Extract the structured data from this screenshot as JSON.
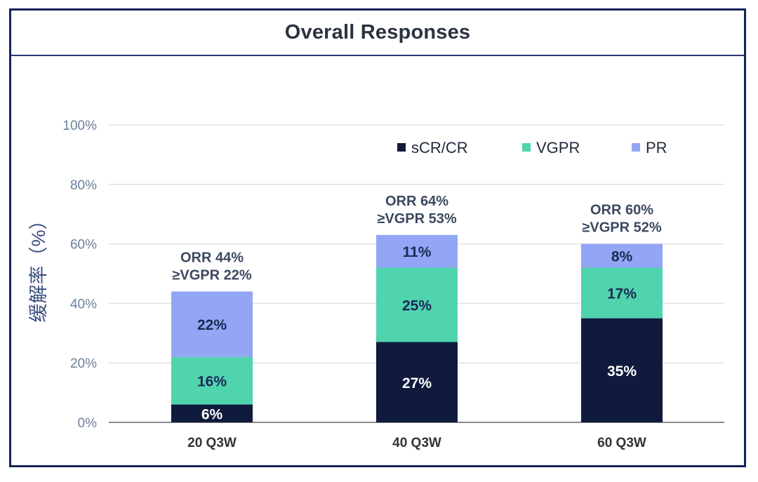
{
  "title": "Overall Responses",
  "chart_data": {
    "type": "bar",
    "stacked": true,
    "title": "Overall Responses",
    "ylabel": "缓解率（%）",
    "xlabel": "",
    "ylim": [
      0,
      100
    ],
    "y_ticks": [
      "0%",
      "20%",
      "40%",
      "60%",
      "80%",
      "100%"
    ],
    "grid": true,
    "legend_position": "top-right",
    "categories": [
      "20 Q3W",
      "40 Q3W",
      "60 Q3W"
    ],
    "series": [
      {
        "name": "sCR/CR",
        "color": "#0f1a3c",
        "label_color": "#ffffff",
        "values": [
          6,
          27,
          35
        ],
        "labels": [
          "6%",
          "27%",
          "35%"
        ]
      },
      {
        "name": "VGPR",
        "color": "#4fd4ae",
        "label_color": "#1a2a55",
        "values": [
          16,
          25,
          17
        ],
        "labels": [
          "16%",
          "25%",
          "17%"
        ]
      },
      {
        "name": "PR",
        "color": "#92a6f5",
        "label_color": "#1a2a55",
        "values": [
          22,
          11,
          8
        ],
        "labels": [
          "22%",
          "11%",
          "8%"
        ]
      }
    ],
    "annotations": [
      {
        "line1": "ORR 44%",
        "line2": "≥VGPR 22%"
      },
      {
        "line1": "ORR 64%",
        "line2": "≥VGPR 53%"
      },
      {
        "line1": "ORR 60%",
        "line2": "≥VGPR 52%"
      }
    ]
  }
}
